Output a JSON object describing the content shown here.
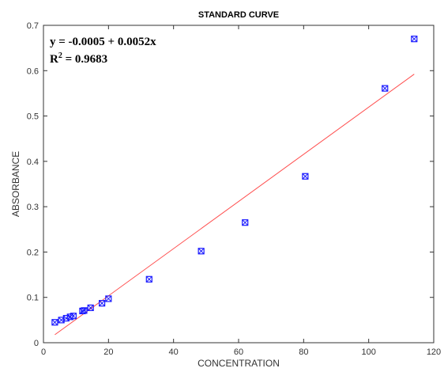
{
  "chart_data": {
    "type": "scatter",
    "title": "STANDARD CURVE",
    "xlabel": "CONCENTRATION",
    "ylabel": "ABSORBANCE",
    "xlim": [
      0,
      120
    ],
    "ylim": [
      0,
      0.7
    ],
    "xticks": [
      0,
      20,
      40,
      60,
      80,
      100,
      120
    ],
    "yticks": [
      0,
      0.1,
      0.2,
      0.3,
      0.4,
      0.5,
      0.6,
      0.7
    ],
    "xtick_labels": [
      "0",
      "20",
      "40",
      "60",
      "80",
      "100",
      "120"
    ],
    "ytick_labels": [
      "0",
      "0.1",
      "0.2",
      "0.3",
      "0.4",
      "0.5",
      "0.6",
      "0.7"
    ],
    "grid": false,
    "annotations": {
      "equation": "y = -0.0005 + 0.0052x",
      "r_squared_prefix": "R",
      "r_squared_superscript": "2",
      "r_squared_value": " = 0.9683"
    },
    "series": [
      {
        "kind": "points",
        "marker": "square-x",
        "color": "#1a1aff",
        "x": [
          3.5,
          5.5,
          7,
          8.2,
          9.2,
          12,
          12.5,
          14.5,
          18,
          20,
          32.5,
          48.5,
          62,
          80.5,
          105,
          114
        ],
        "y": [
          0.045,
          0.05,
          0.054,
          0.057,
          0.059,
          0.07,
          0.071,
          0.077,
          0.087,
          0.097,
          0.14,
          0.202,
          0.265,
          0.367,
          0.561,
          0.67
        ]
      },
      {
        "kind": "fit-line",
        "color": "#ff4d4d",
        "intercept": -0.0005,
        "slope": 0.0052,
        "x_range": [
          3.5,
          114
        ]
      }
    ]
  }
}
